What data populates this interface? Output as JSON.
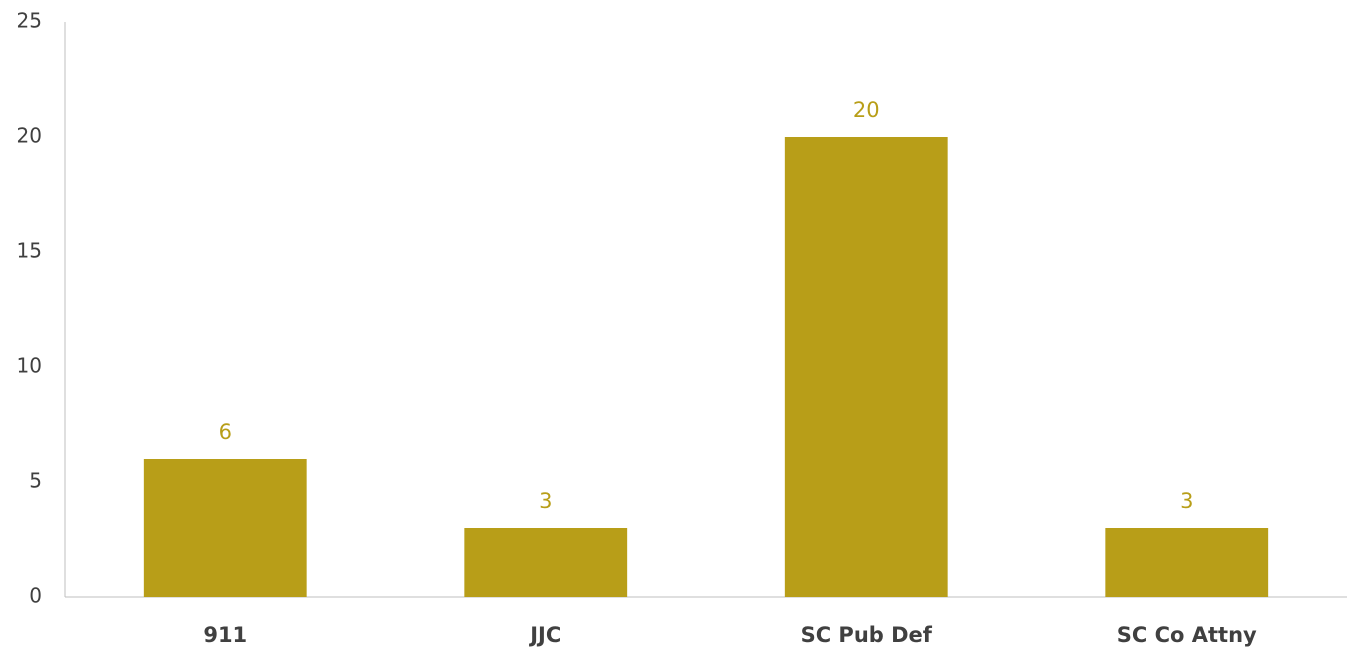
{
  "chart_data": {
    "type": "bar",
    "categories": [
      "911",
      "JJC",
      "SC Pub Def",
      "SC Co Attny"
    ],
    "values": [
      6,
      3,
      20,
      3
    ],
    "color": "#b89e18",
    "ylim": [
      0,
      25
    ],
    "yticks": [
      0,
      5,
      10,
      15,
      20,
      25
    ],
    "grid": false,
    "data_labels": true
  }
}
